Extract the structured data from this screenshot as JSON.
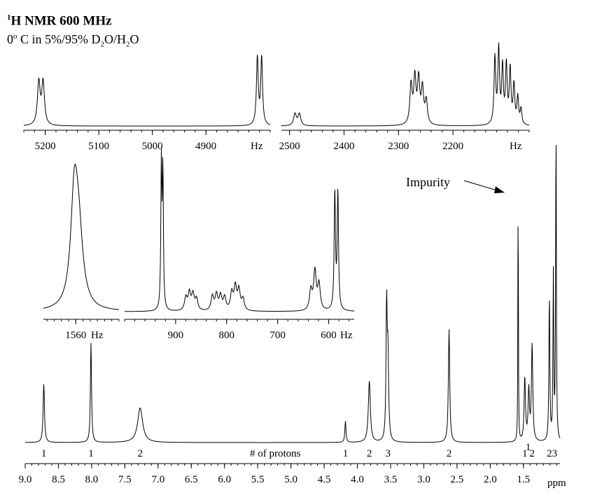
{
  "header": {
    "nucleus_mass": "1",
    "title_rest": "H NMR 600 MHz",
    "temperature_value": "0",
    "degree_mark": "o",
    "condition_mid": " C in 5%/95% D",
    "sub_2a": "2",
    "condition_mid2": "O/H",
    "sub_2b": "2",
    "condition_end": "O"
  },
  "annotations": {
    "impurity": "Impurity",
    "protons_caption": "# of protons",
    "main_unit": "ppm"
  },
  "chart_data": [
    {
      "type": "line",
      "panel": "main",
      "xlabel": "ppm",
      "xlim": [
        9.0,
        0.95
      ],
      "x_reversed": true,
      "tick_labels": [
        "9.0",
        "8.5",
        "8.0",
        "7.5",
        "7.0",
        "6.5",
        "6.0",
        "5.5",
        "5.0",
        "4.5",
        "4.0",
        "3.5",
        "3.0",
        "2.5",
        "2.0",
        "1.5"
      ],
      "tick_values": [
        9.0,
        8.5,
        8.0,
        7.5,
        7.0,
        6.5,
        6.0,
        5.5,
        5.0,
        4.5,
        4.0,
        3.5,
        3.0,
        2.5,
        2.0,
        1.5
      ],
      "peaks": [
        {
          "ppm": 8.72,
          "height": 0.44,
          "width": 0.012
        },
        {
          "ppm": 8.01,
          "height": 0.75,
          "width": 0.01
        },
        {
          "ppm": 7.27,
          "height": 0.26,
          "width": 0.045
        },
        {
          "ppm": 4.18,
          "height": 0.16,
          "width": 0.01
        },
        {
          "ppm": 3.82,
          "height": 0.46,
          "width": 0.018
        },
        {
          "ppm": 3.56,
          "height": 1.0,
          "width": 0.01
        },
        {
          "ppm": 3.54,
          "height": 0.62,
          "width": 0.012
        },
        {
          "ppm": 2.62,
          "height": 0.85,
          "width": 0.012
        },
        {
          "ppm": 1.58,
          "height": 2.1,
          "width": 0.004
        },
        {
          "ppm": 1.48,
          "height": 0.48,
          "width": 0.012
        },
        {
          "ppm": 1.42,
          "height": 0.38,
          "width": 0.012
        },
        {
          "ppm": 1.37,
          "height": 0.73,
          "width": 0.012
        },
        {
          "ppm": 1.11,
          "height": 1.1,
          "width": 0.008
        },
        {
          "ppm": 1.05,
          "height": 1.25,
          "width": 0.007
        },
        {
          "ppm": 1.01,
          "height": 2.45,
          "width": 0.006
        }
      ],
      "integrals": [
        {
          "ppm": 8.72,
          "label": "1"
        },
        {
          "ppm": 8.01,
          "label": "1"
        },
        {
          "ppm": 7.27,
          "label": "2"
        },
        {
          "ppm": 4.18,
          "label": "1"
        },
        {
          "ppm": 3.82,
          "label": "2"
        },
        {
          "ppm": 3.54,
          "label": "3"
        },
        {
          "ppm": 2.62,
          "label": "2"
        },
        {
          "ppm": 1.48,
          "label": "1"
        },
        {
          "ppm": 1.43,
          "label": "1"
        },
        {
          "ppm": 1.37,
          "label": "2"
        },
        {
          "ppm": 1.11,
          "label": "2"
        },
        {
          "ppm": 1.03,
          "label": "3"
        }
      ]
    },
    {
      "type": "line",
      "panel": "inset-top-left",
      "xlabel": "Hz",
      "xlim": [
        5240,
        4780
      ],
      "tick_labels": [
        "5200",
        "5100",
        "5000",
        "4900"
      ],
      "tick_values": [
        5200,
        5100,
        5000,
        4900
      ],
      "peaks": [
        {
          "x": 5212,
          "height": 0.6,
          "width": 3
        },
        {
          "x": 5204,
          "height": 0.6,
          "width": 3
        },
        {
          "x": 4804,
          "height": 0.95,
          "width": 2
        },
        {
          "x": 4796,
          "height": 0.95,
          "width": 2
        }
      ]
    },
    {
      "type": "line",
      "panel": "inset-top-right",
      "xlabel": "Hz",
      "xlim": [
        2515,
        2060
      ],
      "tick_labels": [
        "2500",
        "2400",
        "2300",
        "2200"
      ],
      "tick_values": [
        2500,
        2400,
        2300,
        2200
      ],
      "peaks": [
        {
          "x": 2490,
          "height": 0.15,
          "width": 3
        },
        {
          "x": 2482,
          "height": 0.15,
          "width": 3
        },
        {
          "x": 2277,
          "height": 0.5,
          "width": 2.5
        },
        {
          "x": 2270,
          "height": 0.58,
          "width": 2.5
        },
        {
          "x": 2263,
          "height": 0.56,
          "width": 2.5
        },
        {
          "x": 2256,
          "height": 0.45,
          "width": 2.5
        },
        {
          "x": 2249,
          "height": 0.3,
          "width": 2.5
        },
        {
          "x": 2123,
          "height": 0.85,
          "width": 1.8
        },
        {
          "x": 2116,
          "height": 0.95,
          "width": 1.8
        },
        {
          "x": 2109,
          "height": 0.72,
          "width": 1.8
        },
        {
          "x": 2102,
          "height": 0.75,
          "width": 1.8
        },
        {
          "x": 2095,
          "height": 0.7,
          "width": 1.8
        },
        {
          "x": 2088,
          "height": 0.5,
          "width": 1.8
        },
        {
          "x": 2081,
          "height": 0.35,
          "width": 1.8
        },
        {
          "x": 2075,
          "height": 0.2,
          "width": 1.8
        }
      ]
    },
    {
      "type": "line",
      "panel": "inset-mid-left",
      "xlabel": "Hz",
      "xlim": [
        1605,
        1500
      ],
      "tick_labels": [
        "1560"
      ],
      "tick_values": [
        1560
      ],
      "peaks": [
        {
          "x": 1562,
          "height": 0.8,
          "width": 6
        },
        {
          "x": 1556,
          "height": 0.5,
          "width": 7
        }
      ]
    },
    {
      "type": "line",
      "panel": "inset-mid-right",
      "xlabel": "Hz",
      "xlim": [
        1000,
        550
      ],
      "tick_labels": [
        "900",
        "800",
        "700",
        "600"
      ],
      "tick_values": [
        900,
        800,
        700,
        600
      ],
      "peaks": [
        {
          "x": 928,
          "height": 1.0,
          "width": 1.2
        },
        {
          "x": 925,
          "height": 0.95,
          "width": 1.2
        },
        {
          "x": 880,
          "height": 0.09,
          "width": 3
        },
        {
          "x": 873,
          "height": 0.12,
          "width": 3
        },
        {
          "x": 866,
          "height": 0.11,
          "width": 3
        },
        {
          "x": 859,
          "height": 0.08,
          "width": 3
        },
        {
          "x": 828,
          "height": 0.1,
          "width": 3
        },
        {
          "x": 820,
          "height": 0.11,
          "width": 3
        },
        {
          "x": 812,
          "height": 0.1,
          "width": 3
        },
        {
          "x": 804,
          "height": 0.09,
          "width": 3
        },
        {
          "x": 790,
          "height": 0.12,
          "width": 3
        },
        {
          "x": 783,
          "height": 0.16,
          "width": 3
        },
        {
          "x": 776,
          "height": 0.14,
          "width": 3
        },
        {
          "x": 768,
          "height": 0.08,
          "width": 3
        },
        {
          "x": 635,
          "height": 0.14,
          "width": 3
        },
        {
          "x": 627,
          "height": 0.27,
          "width": 3
        },
        {
          "x": 619,
          "height": 0.18,
          "width": 3
        },
        {
          "x": 588,
          "height": 0.82,
          "width": 1.5
        },
        {
          "x": 582,
          "height": 0.82,
          "width": 1.5
        }
      ]
    }
  ]
}
